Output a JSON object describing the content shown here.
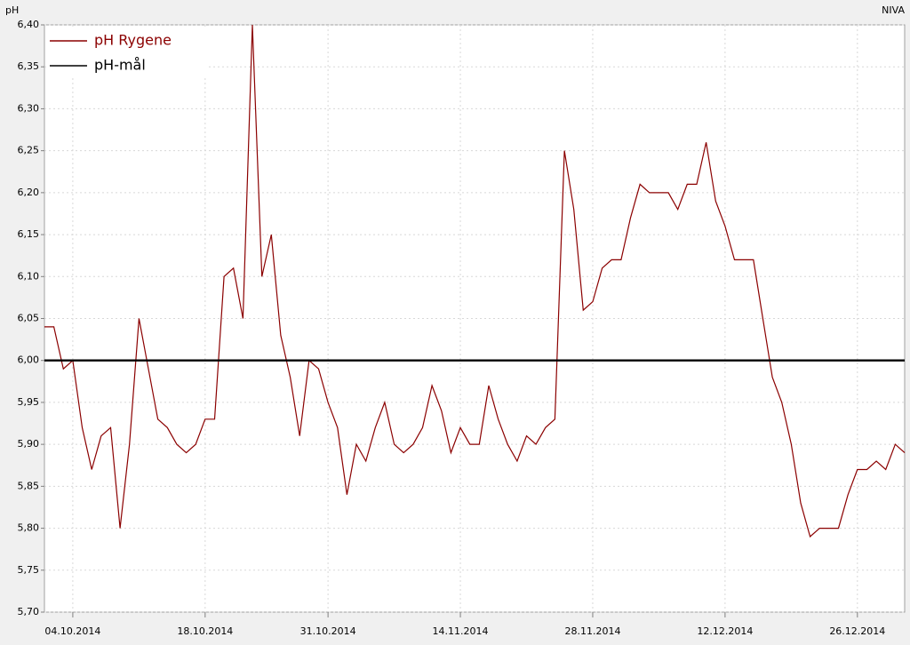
{
  "chart_data": {
    "type": "line",
    "y_label": "pH",
    "source": "NIVA",
    "x": [
      "2014-10-01",
      "2014-10-02",
      "2014-10-03",
      "2014-10-04",
      "2014-10-05",
      "2014-10-06",
      "2014-10-07",
      "2014-10-08",
      "2014-10-09",
      "2014-10-10",
      "2014-10-11",
      "2014-10-12",
      "2014-10-13",
      "2014-10-14",
      "2014-10-15",
      "2014-10-16",
      "2014-10-17",
      "2014-10-18",
      "2014-10-19",
      "2014-10-20",
      "2014-10-21",
      "2014-10-22",
      "2014-10-23",
      "2014-10-24",
      "2014-10-25",
      "2014-10-26",
      "2014-10-27",
      "2014-10-28",
      "2014-10-29",
      "2014-10-30",
      "2014-10-31",
      "2014-11-01",
      "2014-11-02",
      "2014-11-03",
      "2014-11-04",
      "2014-11-05",
      "2014-11-06",
      "2014-11-07",
      "2014-11-08",
      "2014-11-09",
      "2014-11-10",
      "2014-11-11",
      "2014-11-12",
      "2014-11-13",
      "2014-11-14",
      "2014-11-15",
      "2014-11-16",
      "2014-11-17",
      "2014-11-18",
      "2014-11-19",
      "2014-11-20",
      "2014-11-21",
      "2014-11-22",
      "2014-11-23",
      "2014-11-24",
      "2014-11-25",
      "2014-11-26",
      "2014-11-27",
      "2014-11-28",
      "2014-11-29",
      "2014-11-30",
      "2014-12-01",
      "2014-12-02",
      "2014-12-03",
      "2014-12-04",
      "2014-12-05",
      "2014-12-06",
      "2014-12-07",
      "2014-12-08",
      "2014-12-09",
      "2014-12-10",
      "2014-12-11",
      "2014-12-12",
      "2014-12-13",
      "2014-12-14",
      "2014-12-15",
      "2014-12-16",
      "2014-12-17",
      "2014-12-18",
      "2014-12-19",
      "2014-12-20",
      "2014-12-21",
      "2014-12-22",
      "2014-12-23",
      "2014-12-24",
      "2014-12-25",
      "2014-12-26",
      "2014-12-27",
      "2014-12-28",
      "2014-12-29",
      "2014-12-30",
      "2014-12-31"
    ],
    "series": [
      {
        "name": "pH Rygene",
        "color": "#8b0000",
        "values": [
          6.04,
          6.04,
          5.99,
          6.0,
          5.92,
          5.87,
          5.91,
          5.92,
          5.8,
          5.9,
          6.05,
          5.99,
          5.93,
          5.92,
          5.9,
          5.89,
          5.9,
          5.93,
          5.93,
          6.1,
          6.11,
          6.05,
          6.4,
          6.1,
          6.15,
          6.03,
          5.98,
          5.91,
          6.0,
          5.99,
          5.95,
          5.92,
          5.84,
          5.9,
          5.88,
          5.92,
          5.95,
          5.9,
          5.89,
          5.9,
          5.92,
          5.97,
          5.94,
          5.89,
          5.92,
          5.9,
          5.9,
          5.97,
          5.93,
          5.9,
          5.88,
          5.91,
          5.9,
          5.92,
          5.93,
          6.25,
          6.18,
          6.06,
          6.07,
          6.11,
          6.12,
          6.12,
          6.17,
          6.21,
          6.2,
          6.2,
          6.2,
          6.18,
          6.21,
          6.21,
          6.26,
          6.19,
          6.16,
          6.12,
          6.12,
          6.12,
          6.05,
          5.98,
          5.95,
          5.9,
          5.83,
          5.79,
          5.8,
          5.8,
          5.8,
          5.84,
          5.87,
          5.87,
          5.88,
          5.87,
          5.9,
          5.89
        ]
      },
      {
        "name": "pH-mål",
        "color": "#000000",
        "x": [
          "2014-10-01",
          "2014-12-31"
        ],
        "values": [
          6.0,
          6.0
        ]
      }
    ],
    "xlim": [
      "2014-10-01",
      "2014-12-31"
    ],
    "xticks": [
      {
        "value": "2014-10-04",
        "label": "04.10.2014"
      },
      {
        "value": "2014-10-18",
        "label": "18.10.2014"
      },
      {
        "value": "2014-10-31",
        "label": "31.10.2014"
      },
      {
        "value": "2014-11-14",
        "label": "14.11.2014"
      },
      {
        "value": "2014-11-28",
        "label": "28.11.2014"
      },
      {
        "value": "2014-12-12",
        "label": "12.12.2014"
      },
      {
        "value": "2014-12-26",
        "label": "26.12.2014"
      }
    ],
    "ylim": [
      5.7,
      6.4
    ],
    "yticks": [
      {
        "value": 5.7,
        "label": "5,70"
      },
      {
        "value": 5.75,
        "label": "5,75"
      },
      {
        "value": 5.8,
        "label": "5,80"
      },
      {
        "value": 5.85,
        "label": "5,85"
      },
      {
        "value": 5.9,
        "label": "5,90"
      },
      {
        "value": 5.95,
        "label": "5,95"
      },
      {
        "value": 6.0,
        "label": "6,00"
      },
      {
        "value": 6.05,
        "label": "6,05"
      },
      {
        "value": 6.1,
        "label": "6,10"
      },
      {
        "value": 6.15,
        "label": "6,15"
      },
      {
        "value": 6.2,
        "label": "6,20"
      },
      {
        "value": 6.25,
        "label": "6,25"
      },
      {
        "value": 6.3,
        "label": "6,30"
      },
      {
        "value": 6.35,
        "label": "6,35"
      },
      {
        "value": 6.4,
        "label": "6,40"
      }
    ],
    "grid": true,
    "legend": "top-left"
  }
}
